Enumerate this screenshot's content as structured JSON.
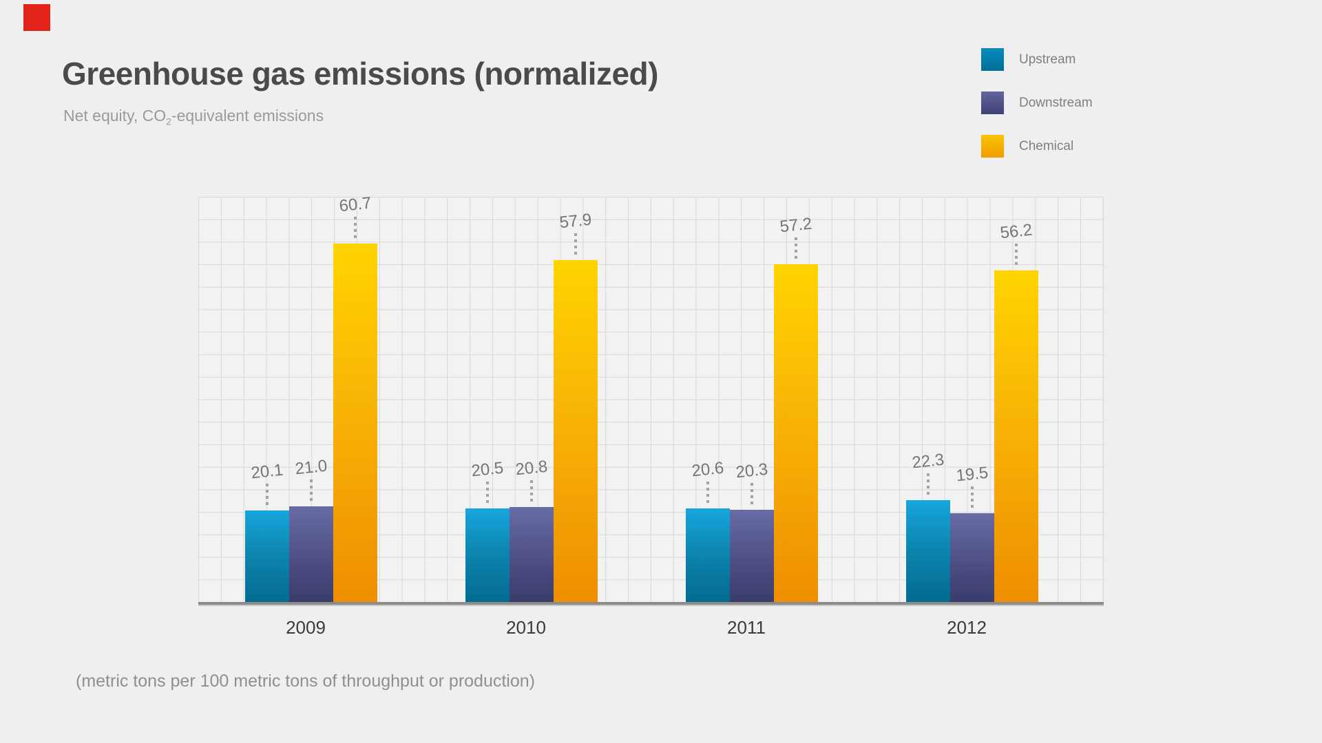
{
  "page": {
    "background_color": "#efefef",
    "red_square_color": "#e2231a"
  },
  "header": {
    "title": "Greenhouse gas emissions (normalized)",
    "subtitle_prefix": "Net equity, CO",
    "subtitle_sub": "2",
    "subtitle_suffix": "-equivalent emissions"
  },
  "legend": {
    "items": [
      {
        "label": "Upstream",
        "color_top": "#068cbe",
        "color_bottom": "#016f96"
      },
      {
        "label": "Downstream",
        "color_top": "#63659d",
        "color_bottom": "#3e4076"
      },
      {
        "label": "Chemical",
        "color_top": "#fcc303",
        "color_bottom": "#f09c00"
      }
    ]
  },
  "chart_data": {
    "type": "bar",
    "title": "Greenhouse gas emissions (normalized)",
    "subtitle": "Net equity, CO2-equivalent emissions",
    "footnote": "(metric tons per 100 metric tons of throughput or production)",
    "categories": [
      "2009",
      "2010",
      "2011",
      "2012"
    ],
    "series": [
      {
        "name": "Upstream",
        "values": [
          20.1,
          20.5,
          20.6,
          22.3
        ],
        "color_top": "#17a6de",
        "color_mid": "#0d87b0",
        "color_bottom": "#046a91"
      },
      {
        "name": "Downstream",
        "values": [
          21.0,
          20.8,
          20.3,
          19.5
        ],
        "color_top": "#696ba5",
        "color_mid": "#52548b",
        "color_bottom": "#3a3c6c"
      },
      {
        "name": "Chemical",
        "values": [
          60.7,
          57.9,
          57.2,
          56.2
        ],
        "color_top": "#ffd400",
        "color_mid": "#f8b406",
        "color_bottom": "#ee8e00"
      }
    ],
    "value_labels": [
      [
        "20.1",
        "21.0",
        "60.7"
      ],
      [
        "20.5",
        "20.8",
        "57.9"
      ],
      [
        "20.6",
        "20.3",
        "57.2"
      ],
      [
        "22.3",
        "19.5",
        "56.2"
      ]
    ],
    "grid": true,
    "legend_position": "top-right",
    "x_axis": {
      "labels": [
        "2009",
        "2010",
        "2011",
        "2012"
      ]
    },
    "y_axis": {
      "visible": false
    }
  },
  "footnote": {
    "text": "(metric tons per 100 metric tons of throughput or production)"
  }
}
